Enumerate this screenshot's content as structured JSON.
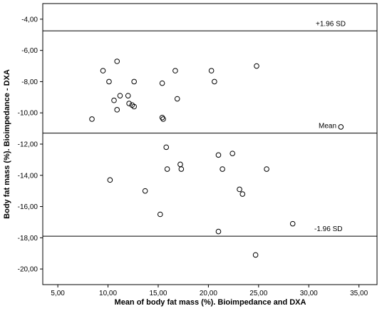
{
  "chart_data": {
    "type": "scatter",
    "title": "",
    "xlabel": "Mean of body fat mass (%). Bioimpedance and DXA",
    "ylabel": "Body fat mass (%). Bioimpedance - DXA",
    "xlim": [
      3.5,
      36.8
    ],
    "ylim": [
      -21.0,
      -3.0
    ],
    "x_ticks": [
      "5,00",
      "10,00",
      "15,00",
      "20,00",
      "25,00",
      "30,00",
      "35,00"
    ],
    "x_tick_values": [
      5,
      10,
      15,
      20,
      25,
      30,
      35
    ],
    "y_ticks": [
      "-4,00",
      "-6,00",
      "-8,00",
      "-10,00",
      "-12,00",
      "-14,00",
      "-16,00",
      "-18,00",
      "-20,00"
    ],
    "y_tick_values": [
      -4,
      -6,
      -8,
      -10,
      -12,
      -14,
      -16,
      -18,
      -20
    ],
    "grid": false,
    "reference_lines": [
      {
        "label": "+1.96 SD",
        "y": -4.75
      },
      {
        "label": "Mean",
        "y": -11.3
      },
      {
        "label": "-1.96 SD",
        "y": -17.9
      }
    ],
    "points": [
      {
        "x": 8.4,
        "y": -10.4
      },
      {
        "x": 9.5,
        "y": -7.3
      },
      {
        "x": 10.1,
        "y": -8.0
      },
      {
        "x": 10.2,
        "y": -14.3
      },
      {
        "x": 10.6,
        "y": -9.2
      },
      {
        "x": 10.9,
        "y": -6.7
      },
      {
        "x": 10.9,
        "y": -9.8
      },
      {
        "x": 11.2,
        "y": -8.9
      },
      {
        "x": 12.0,
        "y": -8.9
      },
      {
        "x": 12.1,
        "y": -9.4
      },
      {
        "x": 12.4,
        "y": -9.5
      },
      {
        "x": 12.6,
        "y": -9.6
      },
      {
        "x": 12.6,
        "y": -8.0
      },
      {
        "x": 13.7,
        "y": -15.0
      },
      {
        "x": 15.2,
        "y": -16.5
      },
      {
        "x": 15.4,
        "y": -8.1
      },
      {
        "x": 15.4,
        "y": -10.3
      },
      {
        "x": 15.5,
        "y": -10.4
      },
      {
        "x": 15.8,
        "y": -12.2
      },
      {
        "x": 15.9,
        "y": -13.6
      },
      {
        "x": 16.7,
        "y": -7.3
      },
      {
        "x": 16.9,
        "y": -9.1
      },
      {
        "x": 17.2,
        "y": -13.3
      },
      {
        "x": 17.3,
        "y": -13.6
      },
      {
        "x": 20.3,
        "y": -7.3
      },
      {
        "x": 20.6,
        "y": -8.0
      },
      {
        "x": 21.0,
        "y": -12.7
      },
      {
        "x": 21.0,
        "y": -17.6
      },
      {
        "x": 21.4,
        "y": -13.6
      },
      {
        "x": 22.4,
        "y": -12.6
      },
      {
        "x": 23.1,
        "y": -14.9
      },
      {
        "x": 23.4,
        "y": -15.2
      },
      {
        "x": 24.7,
        "y": -19.1
      },
      {
        "x": 24.8,
        "y": -7.0
      },
      {
        "x": 25.8,
        "y": -13.6
      },
      {
        "x": 28.4,
        "y": -17.1
      },
      {
        "x": 33.2,
        "y": -10.9
      }
    ],
    "marker": "open-circle",
    "colors": {
      "marker": "#000000",
      "line": "#000000",
      "background": "#ffffff"
    }
  }
}
